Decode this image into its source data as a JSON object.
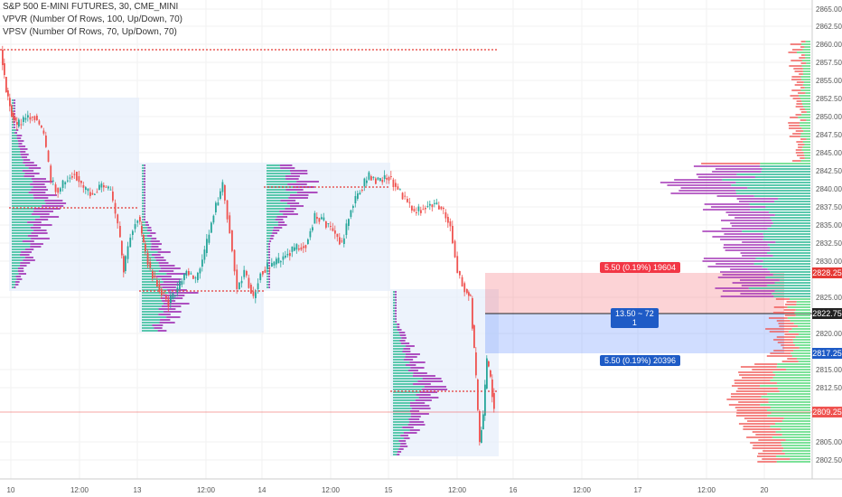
{
  "header": {
    "line1": "S&P 500 E-MINI FUTURES, 30, CME_MINI",
    "line2": "VPVR (Number Of Rows, 100, Up/Down, 70)",
    "line3": "VPSV (Number Of Rows, 70, Up/Down, 70)"
  },
  "price_axis": {
    "ticks": [
      "2865.00",
      "2862.50",
      "2860.00",
      "2857.50",
      "2855.00",
      "2852.50",
      "2850.00",
      "2847.50",
      "2845.00",
      "2842.50",
      "2840.00",
      "2837.50",
      "2835.00",
      "2832.50",
      "2830.00",
      "2825.00",
      "2820.00",
      "2815.00",
      "2812.50",
      "2805.00",
      "2802.50"
    ],
    "tag_red_top": "2828.25",
    "tag_dark": "2822.75",
    "tag_blue": "2817.25",
    "tag_last": "2809.25"
  },
  "time_axis": {
    "ticks": [
      "10",
      "12:00",
      "13",
      "12:00",
      "14",
      "12:00",
      "15",
      "12:00",
      "16",
      "12:00",
      "17",
      "12:00",
      "20"
    ]
  },
  "measure": {
    "top_label": "5.50 (0.19%) 19604",
    "mid_label_line1": "13.50 ~ 72",
    "mid_label_line2": "1",
    "bottom_label": "5.50 (0.19%) 20396"
  },
  "colors": {
    "up": "#26a69a",
    "down": "#ef5350",
    "vp_up": "#3fbf9f",
    "vp_down": "#9c27b0",
    "session_bg": "#e3ecfb",
    "poc": "#e53935"
  }
}
